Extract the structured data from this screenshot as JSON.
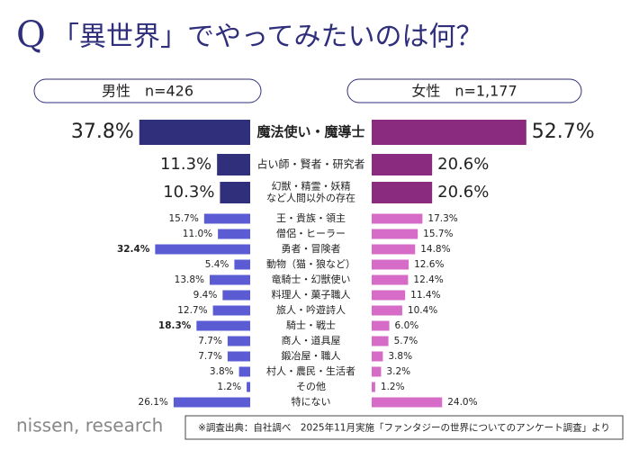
{
  "chart_data": {
    "type": "butterfly",
    "title_mark": "Q",
    "title": "「異世界」でやってみたいのは何？",
    "categories": [
      "魔法使い・魔導士",
      "占い師・賢者・研究者",
      "幻獣・精霊・妖精\nなど人間以外の存在",
      "王・貴族・領主",
      "僧侶・ヒーラー",
      "勇者・冒険者",
      "動物（猫・狼など）",
      "竜騎士・幻獣使い",
      "料理人・菓子職人",
      "旅人・吟遊詩人",
      "騎士・戦士",
      "商人・道具屋",
      "鍛冶屋・職人",
      "村人・農民・生活者",
      "その他",
      "特にない"
    ],
    "series": [
      {
        "name": "男性　n=426",
        "color": "#5b5bd3",
        "top_color": "#2f2f7c",
        "values": [
          37.8,
          11.3,
          10.3,
          15.7,
          11.0,
          32.4,
          5.4,
          13.8,
          9.4,
          12.7,
          18.3,
          7.7,
          7.7,
          3.8,
          1.2,
          26.1
        ],
        "value_labels": [
          "37.8%",
          "11.3%",
          "10.3%",
          "15.7%",
          "11.0%",
          "32.4%",
          "5.4%",
          "13.8%",
          "9.4%",
          "12.7%",
          "18.3%",
          "7.7%",
          "7.7%",
          "3.8%",
          "1.2%",
          "26.1%"
        ]
      },
      {
        "name": "女性　n=1,177",
        "color": "#d66cc8",
        "top_color": "#8a2b80",
        "values": [
          52.7,
          20.6,
          20.6,
          17.3,
          15.7,
          14.8,
          12.6,
          12.4,
          11.4,
          10.4,
          6.0,
          5.7,
          3.8,
          3.2,
          1.2,
          24.0
        ],
        "value_labels": [
          "52.7%",
          "20.6%",
          "20.6%",
          "17.3%",
          "15.7%",
          "14.8%",
          "12.6%",
          "12.4%",
          "11.4%",
          "10.4%",
          "6.0%",
          "5.7%",
          "3.8%",
          "3.2%",
          "1.2%",
          "24.0%"
        ]
      }
    ],
    "logo": "nissen, research",
    "source": "※調査出典：自社調べ　2025年11月実施「ファンタジーの世界についてのアンケート調査」より"
  }
}
